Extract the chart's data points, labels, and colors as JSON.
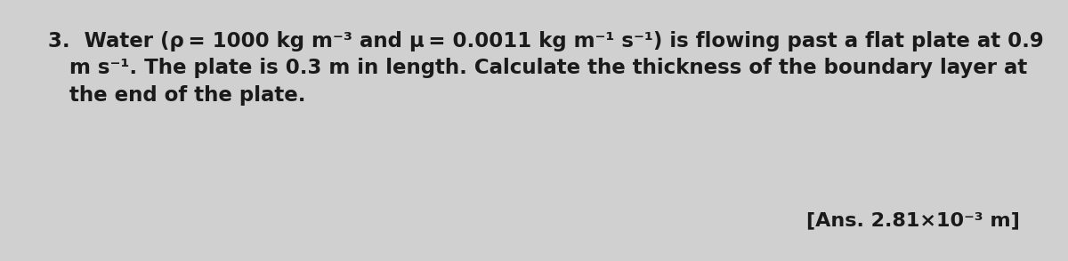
{
  "background_color": "#d0d0d0",
  "text_color": "#1a1a1a",
  "line1": "3.  Water (ρ = 1000 kg m⁻³ and μ = 0.0011 kg m⁻¹ s⁻¹) is flowing past a flat plate at 0.9",
  "line2": "   m s⁻¹. The plate is 0.3 m in length. Calculate the thickness of the boundary layer at",
  "line3": "   the end of the plate.",
  "answer": "[Ans. 2.81×10⁻³ m]",
  "font_size_main": 16.5,
  "font_size_ans": 16,
  "figure_width": 12.0,
  "figure_height": 2.94
}
